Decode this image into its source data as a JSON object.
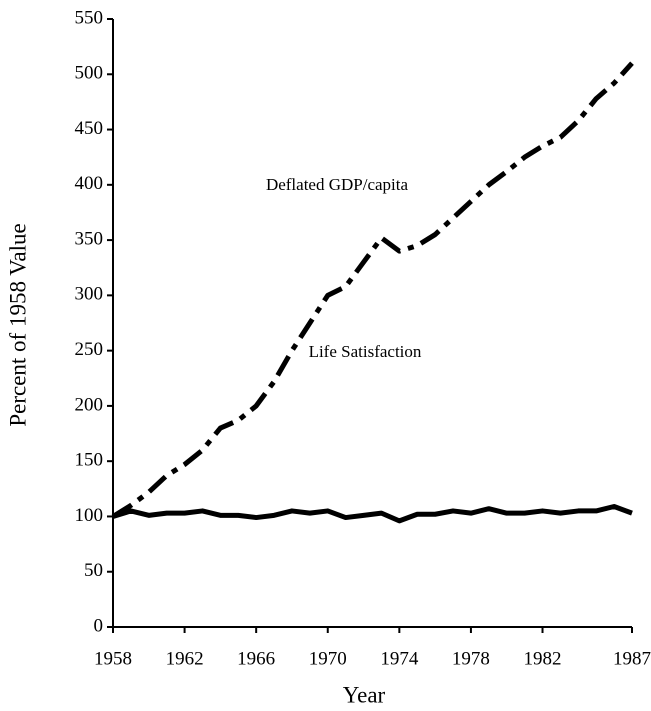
{
  "chart_data": {
    "type": "line",
    "x_label": "Year",
    "y_label": "Percent of 1958 Value",
    "x": [
      1958,
      1959,
      1960,
      1961,
      1962,
      1963,
      1964,
      1965,
      1966,
      1967,
      1968,
      1969,
      1970,
      1971,
      1972,
      1973,
      1974,
      1975,
      1976,
      1977,
      1978,
      1979,
      1980,
      1981,
      1982,
      1983,
      1984,
      1985,
      1986,
      1987
    ],
    "series": [
      {
        "name": "Deflated GDP/capita",
        "color": "#000000",
        "dash": "dashdot",
        "values": [
          100,
          110,
          122,
          137,
          147,
          160,
          180,
          187,
          200,
          222,
          250,
          275,
          300,
          308,
          330,
          352,
          340,
          345,
          355,
          370,
          385,
          400,
          412,
          425,
          435,
          443,
          458,
          478,
          492,
          510
        ]
      },
      {
        "name": "Life Satisfaction",
        "color": "#000000",
        "dash": "solid",
        "values": [
          100,
          105,
          101,
          103,
          103,
          105,
          101,
          101,
          99,
          101,
          105,
          103,
          105,
          99,
          101,
          103,
          96,
          102,
          102,
          105,
          103,
          107,
          103,
          103,
          105,
          103,
          105,
          105,
          109,
          103
        ]
      }
    ],
    "xlim": [
      1958,
      1987
    ],
    "xticks": [
      1958,
      1962,
      1966,
      1970,
      1974,
      1978,
      1982,
      1987
    ],
    "ylim": [
      0,
      550
    ],
    "yticks": [
      0,
      50,
      100,
      150,
      200,
      250,
      300,
      350,
      400,
      450,
      500,
      550
    ],
    "grid": false
  }
}
